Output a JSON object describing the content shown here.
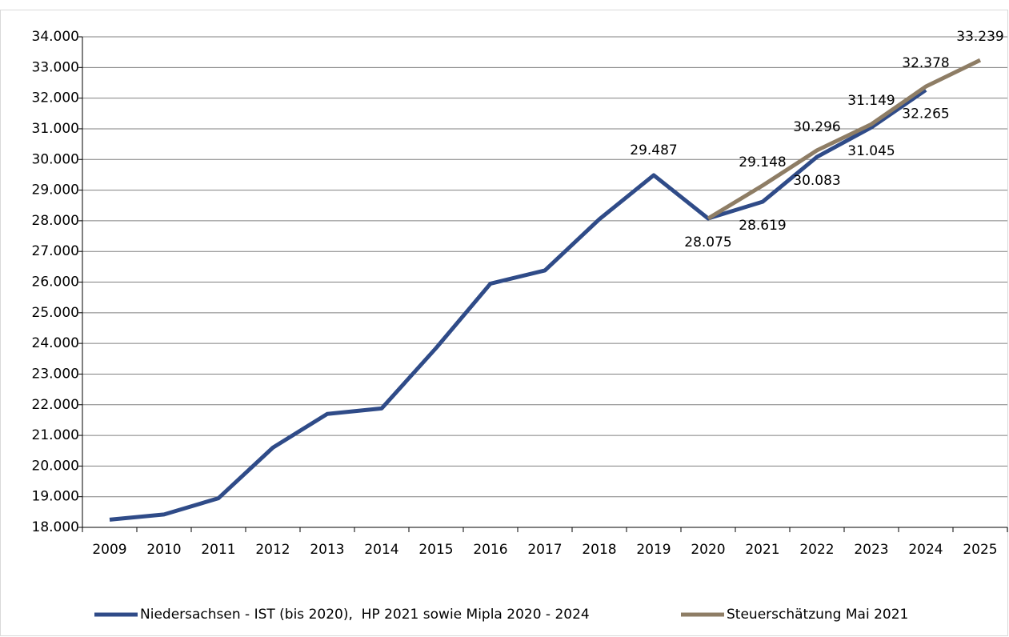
{
  "chart_data": {
    "type": "line",
    "categories": [
      "2009",
      "2010",
      "2011",
      "2012",
      "2013",
      "2014",
      "2015",
      "2016",
      "2017",
      "2018",
      "2019",
      "2020",
      "2021",
      "2022",
      "2023",
      "2024",
      "2025"
    ],
    "series": [
      {
        "name": "Niedersachsen - IST (bis 2020),  HP 2021 sowie Mipla 2020 - 2024",
        "color": "#2f4b88",
        "values": [
          18250,
          18420,
          18950,
          20600,
          21700,
          21880,
          23850,
          25950,
          26380,
          28050,
          29487,
          28075,
          28619,
          30083,
          31045,
          32265,
          null
        ],
        "value_labels": [
          null,
          null,
          null,
          null,
          null,
          null,
          null,
          null,
          null,
          null,
          "29.487",
          "28.075",
          "28.619",
          "30.083",
          "31.045",
          "32.265",
          null
        ]
      },
      {
        "name": "Steuerschätzung Mai 2021",
        "color": "#8e7d65",
        "values": [
          null,
          null,
          null,
          null,
          null,
          null,
          null,
          null,
          null,
          null,
          null,
          28075,
          29148,
          30296,
          31149,
          32378,
          33239
        ],
        "value_labels": [
          null,
          null,
          null,
          null,
          null,
          null,
          null,
          null,
          null,
          null,
          null,
          null,
          "29.148",
          "30.296",
          "31.149",
          "32.378",
          "33.239"
        ]
      }
    ],
    "ylim": [
      18000,
      34000
    ],
    "yticks": [
      {
        "value": 18000,
        "label": "18.000"
      },
      {
        "value": 19000,
        "label": "19.000"
      },
      {
        "value": 20000,
        "label": "20.000"
      },
      {
        "value": 21000,
        "label": "21.000"
      },
      {
        "value": 22000,
        "label": "22.000"
      },
      {
        "value": 23000,
        "label": "23.000"
      },
      {
        "value": 24000,
        "label": "24.000"
      },
      {
        "value": 25000,
        "label": "25.000"
      },
      {
        "value": 26000,
        "label": "26.000"
      },
      {
        "value": 27000,
        "label": "27.000"
      },
      {
        "value": 28000,
        "label": "28.000"
      },
      {
        "value": 29000,
        "label": "29.000"
      },
      {
        "value": 30000,
        "label": "30.000"
      },
      {
        "value": 31000,
        "label": "31.000"
      },
      {
        "value": 32000,
        "label": "32.000"
      },
      {
        "value": 33000,
        "label": "33.000"
      },
      {
        "value": 34000,
        "label": "34.000"
      }
    ],
    "grid": true,
    "legend": "bottom"
  }
}
